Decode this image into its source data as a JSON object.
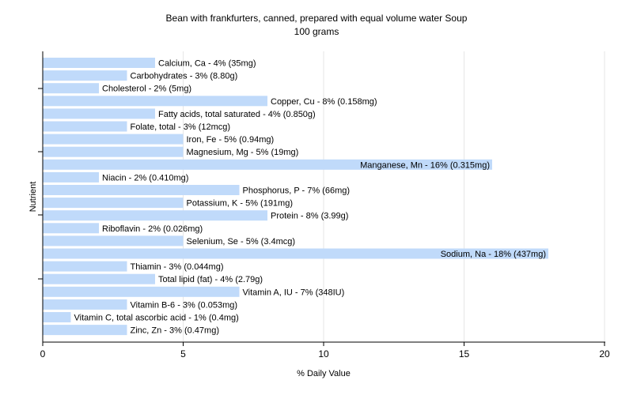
{
  "chart_data": {
    "type": "bar",
    "orientation": "horizontal",
    "title": "Bean with frankfurters, canned, prepared with equal volume water Soup",
    "subtitle": "100 grams",
    "xlabel": "% Daily Value",
    "ylabel": "Nutrient",
    "xlim": [
      0,
      20
    ],
    "xticks": [
      0,
      5,
      10,
      15,
      20
    ],
    "grid": true,
    "bar_color": "#c0dafa",
    "categories": [
      "Calcium, Ca",
      "Carbohydrates",
      "Cholesterol",
      "Copper, Cu",
      "Fatty acids, total saturated",
      "Folate, total",
      "Iron, Fe",
      "Magnesium, Mg",
      "Manganese, Mn",
      "Niacin",
      "Phosphorus, P",
      "Potassium, K",
      "Protein",
      "Riboflavin",
      "Selenium, Se",
      "Sodium, Na",
      "Thiamin",
      "Total lipid (fat)",
      "Vitamin A, IU",
      "Vitamin B-6",
      "Vitamin C, total ascorbic acid",
      "Zinc, Zn"
    ],
    "values": [
      4,
      3,
      2,
      8,
      4,
      3,
      5,
      5,
      16,
      2,
      7,
      5,
      8,
      2,
      5,
      18,
      3,
      4,
      7,
      3,
      1,
      3
    ],
    "labels": [
      "Calcium, Ca - 4% (35mg)",
      "Carbohydrates - 3% (8.80g)",
      "Cholesterol - 2% (5mg)",
      "Copper, Cu - 8% (0.158mg)",
      "Fatty acids, total saturated - 4% (0.850g)",
      "Folate, total - 3% (12mcg)",
      "Iron, Fe - 5% (0.94mg)",
      "Magnesium, Mg - 5% (19mg)",
      "Manganese, Mn - 16% (0.315mg)",
      "Niacin - 2% (0.410mg)",
      "Phosphorus, P - 7% (66mg)",
      "Potassium, K - 5% (191mg)",
      "Protein - 8% (3.99g)",
      "Riboflavin - 2% (0.026mg)",
      "Selenium, Se - 5% (3.4mcg)",
      "Sodium, Na - 18% (437mg)",
      "Thiamin - 3% (0.044mg)",
      "Total lipid (fat) - 4% (2.79g)",
      "Vitamin A, IU - 7% (348IU)",
      "Vitamin B-6 - 3% (0.053mg)",
      "Vitamin C, total ascorbic acid - 1% (0.4mg)",
      "Zinc, Zn - 3% (0.47mg)"
    ]
  }
}
